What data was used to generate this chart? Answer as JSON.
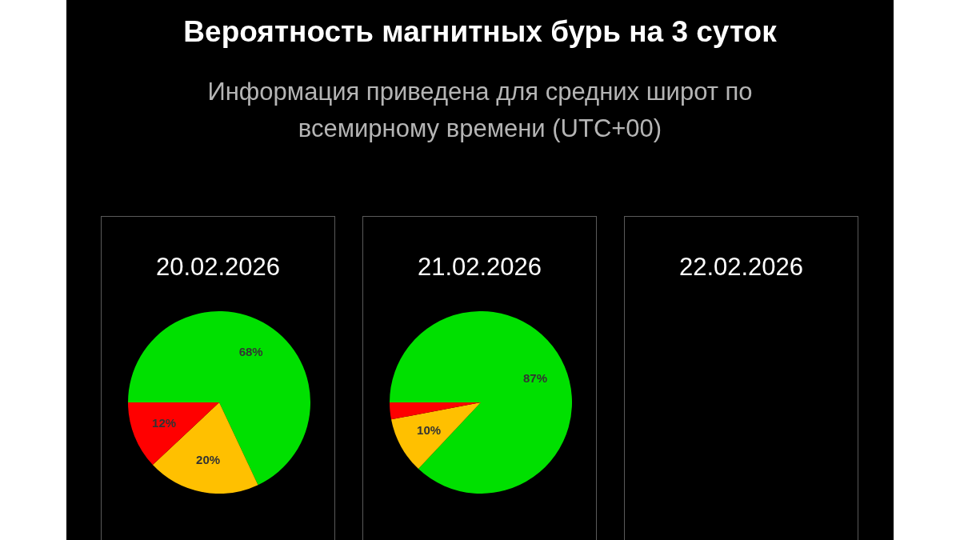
{
  "chart_data": [
    {
      "type": "other",
      "title": "Вероятность магнитных бурь на 3 суток",
      "subtitle": "Информация приведена для средних широт по всемирному времени (UTC+00)"
    },
    {
      "type": "pie",
      "title": "20.02.2026",
      "categories": [
        null,
        null,
        null
      ],
      "values": [
        68,
        20,
        12
      ],
      "colors": [
        "#00e000",
        "#ffc000",
        "#ff0000"
      ],
      "value_labels": [
        "68%",
        "20%",
        "12%"
      ]
    },
    {
      "type": "pie",
      "title": "21.02.2026",
      "categories": [
        null,
        null,
        null
      ],
      "values": [
        87,
        10,
        3
      ],
      "colors": [
        "#00e000",
        "#ffc000",
        "#ff0000"
      ],
      "value_labels": [
        "87%",
        "10%",
        null
      ]
    },
    {
      "type": "other",
      "title": "22.02.2026"
    }
  ]
}
